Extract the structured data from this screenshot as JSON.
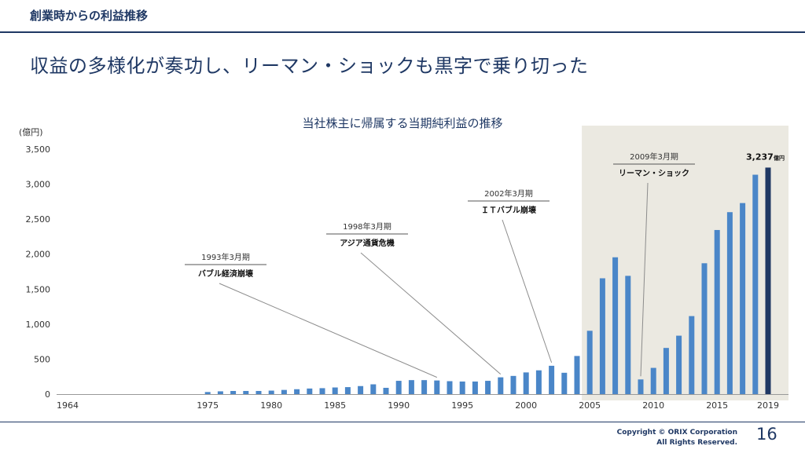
{
  "header": {
    "section_title": "創業時からの利益推移"
  },
  "main_title": "収益の多様化が奏功し、リーマン・ショックも黒字で乗り切った",
  "footer": {
    "copyright_line1": "Copyright © ORIX Corporation",
    "copyright_line2": "All Rights Reserved.",
    "page_number": "16"
  },
  "colors": {
    "bar": "#4a86c8",
    "highlight_bar": "#1f3864",
    "shade": "#ebe9e1",
    "leader": "#8c8c8c"
  },
  "chart_data": {
    "type": "bar",
    "title": "当社株主に帰属する当期純利益の推移",
    "unit_label": "(億円)",
    "ylim": [
      0,
      3500
    ],
    "y_ticks": [
      "0",
      "500",
      "1,000",
      "1,500",
      "2,000",
      "2,500",
      "3,000",
      "3,500"
    ],
    "y_tick_values": [
      0,
      500,
      1000,
      1500,
      2000,
      2500,
      3000,
      3500
    ],
    "x_ticks": [
      "1964",
      "1975",
      "1980",
      "1985",
      "1990",
      "1995",
      "2000",
      "2005",
      "2010",
      "2015",
      "2019"
    ],
    "x_tick_years": [
      1964,
      1975,
      1980,
      1985,
      1990,
      1995,
      2000,
      2005,
      2010,
      2015,
      2019
    ],
    "x_range": [
      1964,
      2019
    ],
    "categories": [
      1975,
      1976,
      1977,
      1978,
      1979,
      1980,
      1981,
      1982,
      1983,
      1984,
      1985,
      1986,
      1987,
      1988,
      1989,
      1990,
      1991,
      1992,
      1993,
      1994,
      1995,
      1996,
      1997,
      1998,
      1999,
      2000,
      2001,
      2002,
      2003,
      2004,
      2005,
      2006,
      2007,
      2008,
      2009,
      2010,
      2011,
      2012,
      2013,
      2014,
      2015,
      2016,
      2017,
      2018,
      2019
    ],
    "values": [
      30,
      40,
      45,
      45,
      45,
      50,
      60,
      70,
      80,
      85,
      95,
      100,
      115,
      140,
      90,
      190,
      200,
      200,
      195,
      185,
      180,
      180,
      190,
      240,
      260,
      310,
      340,
      405,
      305,
      545,
      905,
      1655,
      1955,
      1690,
      210,
      375,
      660,
      835,
      1115,
      1870,
      2345,
      2600,
      2730,
      3135,
      3237
    ],
    "highlight": {
      "year": 2019,
      "label": "3,237",
      "unit": "億円"
    },
    "shaded_from_year": 2005,
    "grid": false,
    "annotations": [
      {
        "period": "1993年3月期",
        "event": "バブル経済崩壊",
        "year": 1993
      },
      {
        "period": "1998年3月期",
        "event": "アジア通貨危機",
        "year": 1998
      },
      {
        "period": "2002年3月期",
        "event": "ＩＴバブル崩壊",
        "year": 2002
      },
      {
        "period": "2009年3月期",
        "event": "リーマン・ショック",
        "year": 2009
      }
    ]
  }
}
